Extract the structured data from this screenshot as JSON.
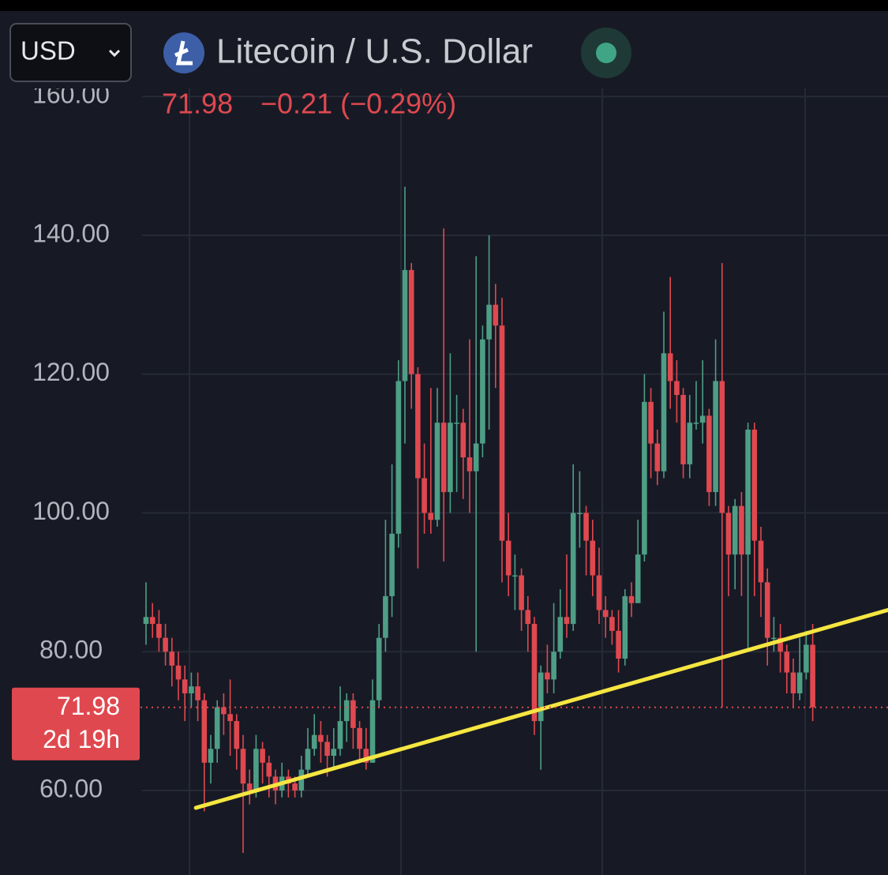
{
  "header": {
    "currency": "USD",
    "title": "Litecoin / U.S. Dollar",
    "last": 71.98,
    "change": "−0.21 (−0.29%)"
  },
  "chart_data": {
    "type": "candlestick",
    "up_color": "#4e9e85",
    "down_color": "#e0484f",
    "grid": true,
    "ylim": [
      47.82,
      173.91
    ],
    "yticks": [
      {
        "value": 60,
        "label": "60.00"
      },
      {
        "value": 80,
        "label": "80.00"
      },
      {
        "value": 100,
        "label": "100.00"
      },
      {
        "value": 120,
        "label": "120.00"
      },
      {
        "value": 140,
        "label": "140.00"
      },
      {
        "value": 160,
        "label": "160.00"
      }
    ],
    "open": [
      84,
      85,
      84,
      82,
      80,
      78,
      76,
      74,
      75,
      73,
      64,
      66,
      72,
      71,
      70,
      66,
      61,
      60,
      66,
      64,
      62,
      60,
      62,
      61,
      60,
      63,
      66,
      68,
      67,
      65,
      66,
      70,
      73,
      69,
      66,
      64,
      73,
      82,
      88,
      97,
      119,
      135,
      120,
      105,
      100,
      99,
      113,
      103,
      113,
      113,
      108,
      106,
      110,
      125,
      130,
      127,
      96,
      91,
      91,
      86,
      84,
      70,
      77,
      76,
      80,
      85,
      84,
      100,
      100,
      96,
      91,
      86,
      85,
      83,
      79,
      88,
      87,
      94,
      116,
      110,
      106,
      123,
      119,
      117,
      107,
      113,
      113,
      114,
      103,
      119,
      100,
      94,
      101,
      94,
      112,
      96,
      90,
      82,
      82,
      80,
      77,
      74,
      77,
      81
    ],
    "high": [
      90,
      87,
      86,
      84,
      82,
      80,
      78,
      77,
      77,
      74,
      68,
      73,
      74,
      76,
      71,
      68,
      63,
      68,
      67,
      65,
      63,
      64,
      63,
      62,
      65,
      69,
      71,
      70,
      68,
      69,
      75,
      74,
      74,
      70,
      69,
      76,
      84,
      99,
      107,
      122,
      147,
      136,
      121,
      110,
      118,
      118,
      141,
      123,
      117,
      115,
      125,
      137,
      127,
      140,
      133,
      131,
      100,
      94,
      92,
      88,
      85,
      78,
      81,
      87,
      89,
      94,
      107,
      106,
      101,
      99,
      95,
      88,
      86,
      86,
      89,
      90,
      99,
      120,
      118,
      112,
      129,
      134,
      122,
      118,
      117,
      119,
      122,
      115,
      125,
      136,
      101,
      102,
      103,
      113,
      113,
      98,
      92,
      85,
      84,
      81,
      79,
      82,
      83,
      84
    ],
    "low": [
      81,
      82,
      80,
      78,
      75,
      73,
      70,
      72,
      70,
      57,
      61,
      64,
      68,
      65,
      63,
      51,
      58,
      59,
      61,
      59,
      58,
      59,
      59,
      59,
      59,
      62,
      65,
      64,
      62,
      63,
      65,
      67,
      66,
      64,
      63,
      64,
      72,
      80,
      85,
      95,
      110,
      115,
      92,
      97,
      97,
      98,
      93,
      100,
      103,
      102,
      100,
      80,
      108,
      112,
      118,
      90,
      88,
      86,
      83,
      80,
      68,
      63,
      74,
      74,
      79,
      82,
      83,
      95,
      91,
      88,
      84,
      82,
      81,
      77,
      78,
      85,
      87,
      93,
      105,
      104,
      105,
      115,
      113,
      105,
      105,
      112,
      110,
      101,
      101,
      72,
      88,
      89,
      88,
      80,
      88,
      85,
      78,
      80,
      77,
      74,
      72,
      73,
      76,
      70
    ],
    "close": [
      85,
      84,
      82,
      80,
      78,
      76,
      74,
      75,
      73,
      64,
      66,
      72,
      71,
      70,
      66,
      61,
      60,
      66,
      64,
      62,
      60,
      62,
      61,
      60,
      63,
      66,
      68,
      67,
      65,
      66,
      70,
      73,
      69,
      66,
      64,
      73,
      82,
      88,
      97,
      119,
      135,
      120,
      105,
      100,
      99,
      113,
      103,
      113,
      113,
      108,
      106,
      110,
      125,
      130,
      127,
      96,
      91,
      91,
      86,
      84,
      70,
      77,
      76,
      80,
      85,
      84,
      100,
      100,
      96,
      91,
      86,
      85,
      83,
      79,
      88,
      87,
      94,
      116,
      110,
      106,
      123,
      119,
      117,
      107,
      113,
      113,
      114,
      103,
      119,
      100,
      94,
      101,
      94,
      112,
      96,
      90,
      82,
      82,
      80,
      77,
      74,
      77,
      81,
      71.98
    ],
    "trendline": {
      "x": [
        7.7,
        114.6
      ],
      "y": [
        57.5,
        86.0
      ],
      "color": "#f5e642"
    },
    "last_price": 71.98,
    "countdown": "2d 19h"
  }
}
